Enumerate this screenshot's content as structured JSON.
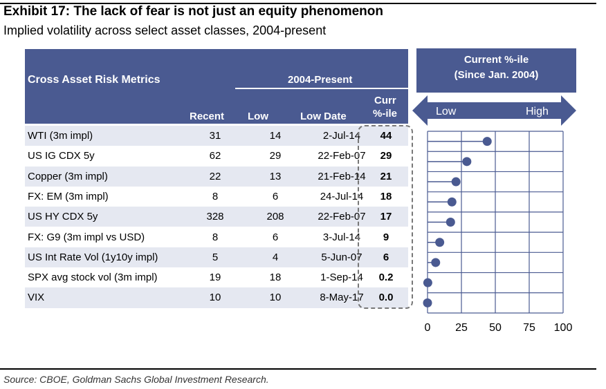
{
  "title": "Exhibit 17: The lack of fear is not just an equity phenomenon",
  "subtitle": "Implied volatility across select asset classes, 2004-present",
  "source": "Source: CBOE, Goldman Sachs Global Investment Research.",
  "table": {
    "header_label": "Cross Asset Risk Metrics",
    "period_label": "2004-Present",
    "columns": {
      "recent": "Recent",
      "low": "Low",
      "low_date": "Low Date",
      "pct_line1": "Curr",
      "pct_line2": "%-ile"
    },
    "rows": [
      {
        "name": "WTI (3m impl)",
        "recent": "31",
        "low": "14",
        "low_date": "2-Jul-14",
        "pct": "44"
      },
      {
        "name": "US IG CDX 5y",
        "recent": "62",
        "low": "29",
        "low_date": "22-Feb-07",
        "pct": "29"
      },
      {
        "name": "Copper (3m impl)",
        "recent": "22",
        "low": "13",
        "low_date": "21-Feb-14",
        "pct": "21"
      },
      {
        "name": "FX: EM (3m impl)",
        "recent": "8",
        "low": "6",
        "low_date": "24-Jul-14",
        "pct": "18"
      },
      {
        "name": "US HY CDX 5y",
        "recent": "328",
        "low": "208",
        "low_date": "22-Feb-07",
        "pct": "17"
      },
      {
        "name": "FX: G9 (3m impl vs USD)",
        "recent": "8",
        "low": "6",
        "low_date": "3-Jul-14",
        "pct": "9"
      },
      {
        "name": "US Int Rate Vol (1y10y impl)",
        "recent": "5",
        "low": "4",
        "low_date": "5-Jun-07",
        "pct": "6"
      },
      {
        "name": "SPX avg stock vol (3m impl)",
        "recent": "19",
        "low": "18",
        "low_date": "1-Sep-14",
        "pct": "0.2"
      },
      {
        "name": "VIX",
        "recent": "10",
        "low": "10",
        "low_date": "8-May-17",
        "pct": "0.0"
      }
    ]
  },
  "chart_data": {
    "type": "scatter",
    "title": "Current %-ile",
    "subtitle": "(Since Jan. 2004)",
    "arrow_low_label": "Low",
    "arrow_high_label": "High",
    "xlim": [
      0,
      100
    ],
    "xticks": [
      "0",
      "25",
      "50",
      "75",
      "100"
    ],
    "grid": true,
    "categories": [
      "WTI (3m impl)",
      "US IG CDX 5y",
      "Copper (3m impl)",
      "FX: EM (3m impl)",
      "US HY CDX 5y",
      "FX: G9 (3m impl vs USD)",
      "US Int Rate Vol (1y10y impl)",
      "SPX avg stock vol (3m impl)",
      "VIX"
    ],
    "values": [
      44,
      29,
      21,
      18,
      17,
      9,
      6,
      0.2,
      0.0
    ],
    "colors": {
      "marker": "#4a5a91",
      "header": "#4a5a91",
      "grid": "#4a5a91",
      "row_alt": "#e5e8f1"
    }
  }
}
